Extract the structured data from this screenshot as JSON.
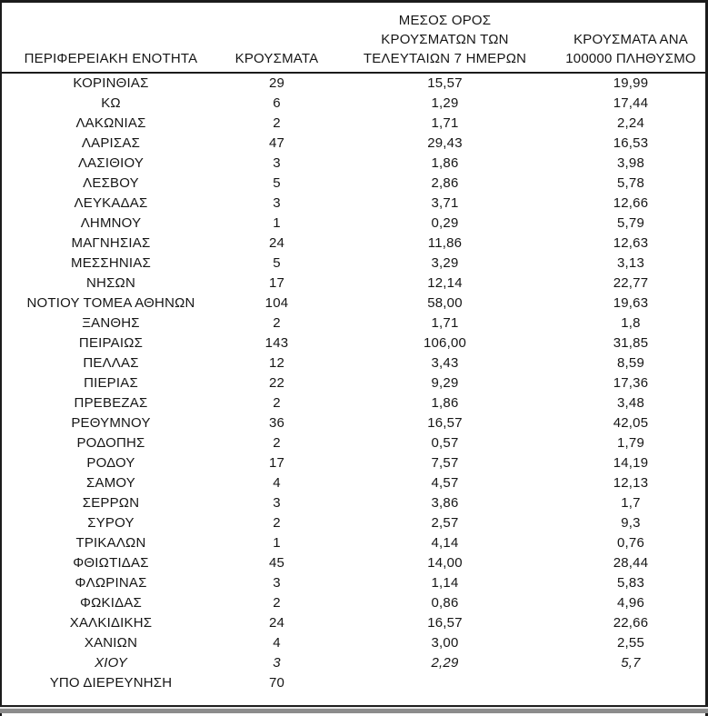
{
  "table": {
    "headers": [
      "ΠΕΡΙΦΕΡΕΙΑΚΗ ΕΝΟΤΗΤΑ",
      "ΚΡΟΥΣΜΑΤΑ",
      "ΜΕΣΟΣ ΟΡΟΣ\nΚΡΟΥΣΜΑΤΩΝ ΤΩΝ\nΤΕΛΕΥΤΑΙΩΝ 7 ΗΜΕΡΩΝ",
      "ΚΡΟΥΣΜΑΤΑ ΑΝΑ\n100000 ΠΛΗΘΥΣΜΟ"
    ],
    "rows": [
      {
        "region": "ΚΟΡΙΝΘΙΑΣ",
        "cases": "29",
        "avg7": "15,57",
        "per100k": "19,99",
        "italic": false
      },
      {
        "region": "ΚΩ",
        "cases": "6",
        "avg7": "1,29",
        "per100k": "17,44",
        "italic": false
      },
      {
        "region": "ΛΑΚΩΝΙΑΣ",
        "cases": "2",
        "avg7": "1,71",
        "per100k": "2,24",
        "italic": false
      },
      {
        "region": "ΛΑΡΙΣΑΣ",
        "cases": "47",
        "avg7": "29,43",
        "per100k": "16,53",
        "italic": false
      },
      {
        "region": "ΛΑΣΙΘΙΟΥ",
        "cases": "3",
        "avg7": "1,86",
        "per100k": "3,98",
        "italic": false
      },
      {
        "region": "ΛΕΣΒΟΥ",
        "cases": "5",
        "avg7": "2,86",
        "per100k": "5,78",
        "italic": false
      },
      {
        "region": "ΛΕΥΚΑΔΑΣ",
        "cases": "3",
        "avg7": "3,71",
        "per100k": "12,66",
        "italic": false
      },
      {
        "region": "ΛΗΜΝΟΥ",
        "cases": "1",
        "avg7": "0,29",
        "per100k": "5,79",
        "italic": false
      },
      {
        "region": "ΜΑΓΝΗΣΙΑΣ",
        "cases": "24",
        "avg7": "11,86",
        "per100k": "12,63",
        "italic": false
      },
      {
        "region": "ΜΕΣΣΗΝΙΑΣ",
        "cases": "5",
        "avg7": "3,29",
        "per100k": "3,13",
        "italic": false
      },
      {
        "region": "ΝΗΣΩΝ",
        "cases": "17",
        "avg7": "12,14",
        "per100k": "22,77",
        "italic": false
      },
      {
        "region": "ΝΟΤΙΟΥ ΤΟΜΕΑ ΑΘΗΝΩΝ",
        "cases": "104",
        "avg7": "58,00",
        "per100k": "19,63",
        "italic": false
      },
      {
        "region": "ΞΑΝΘΗΣ",
        "cases": "2",
        "avg7": "1,71",
        "per100k": "1,8",
        "italic": false
      },
      {
        "region": "ΠΕΙΡΑΙΩΣ",
        "cases": "143",
        "avg7": "106,00",
        "per100k": "31,85",
        "italic": false
      },
      {
        "region": "ΠΕΛΛΑΣ",
        "cases": "12",
        "avg7": "3,43",
        "per100k": "8,59",
        "italic": false
      },
      {
        "region": "ΠΙΕΡΙΑΣ",
        "cases": "22",
        "avg7": "9,29",
        "per100k": "17,36",
        "italic": false
      },
      {
        "region": "ΠΡΕΒΕΖΑΣ",
        "cases": "2",
        "avg7": "1,86",
        "per100k": "3,48",
        "italic": false
      },
      {
        "region": "ΡΕΘΥΜΝΟΥ",
        "cases": "36",
        "avg7": "16,57",
        "per100k": "42,05",
        "italic": false
      },
      {
        "region": "ΡΟΔΟΠΗΣ",
        "cases": "2",
        "avg7": "0,57",
        "per100k": "1,79",
        "italic": false
      },
      {
        "region": "ΡΟΔΟΥ",
        "cases": "17",
        "avg7": "7,57",
        "per100k": "14,19",
        "italic": false
      },
      {
        "region": "ΣΑΜΟΥ",
        "cases": "4",
        "avg7": "4,57",
        "per100k": "12,13",
        "italic": false
      },
      {
        "region": "ΣΕΡΡΩΝ",
        "cases": "3",
        "avg7": "3,86",
        "per100k": "1,7",
        "italic": false
      },
      {
        "region": "ΣΥΡΟΥ",
        "cases": "2",
        "avg7": "2,57",
        "per100k": "9,3",
        "italic": false
      },
      {
        "region": "ΤΡΙΚΑΛΩΝ",
        "cases": "1",
        "avg7": "4,14",
        "per100k": "0,76",
        "italic": false
      },
      {
        "region": "ΦΘΙΩΤΙΔΑΣ",
        "cases": "45",
        "avg7": "14,00",
        "per100k": "28,44",
        "italic": false
      },
      {
        "region": "ΦΛΩΡΙΝΑΣ",
        "cases": "3",
        "avg7": "1,14",
        "per100k": "5,83",
        "italic": false
      },
      {
        "region": "ΦΩΚΙΔΑΣ",
        "cases": "2",
        "avg7": "0,86",
        "per100k": "4,96",
        "italic": false
      },
      {
        "region": "ΧΑΛΚΙΔΙΚΗΣ",
        "cases": "24",
        "avg7": "16,57",
        "per100k": "22,66",
        "italic": false
      },
      {
        "region": "ΧΑΝΙΩΝ",
        "cases": "4",
        "avg7": "3,00",
        "per100k": "2,55",
        "italic": false
      },
      {
        "region": "ΧΙΟΥ",
        "cases": "3",
        "avg7": "2,29",
        "per100k": "5,7",
        "italic": true
      },
      {
        "region": "ΥΠΟ ΔΙΕΡΕΥΝΗΣΗ",
        "cases": "70",
        "avg7": "",
        "per100k": "",
        "italic": false
      }
    ]
  },
  "colors": {
    "frame_border": "#1b1b1b",
    "bottom_shadow": "#8c8c8c",
    "text": "#161616",
    "background": "#ffffff"
  }
}
